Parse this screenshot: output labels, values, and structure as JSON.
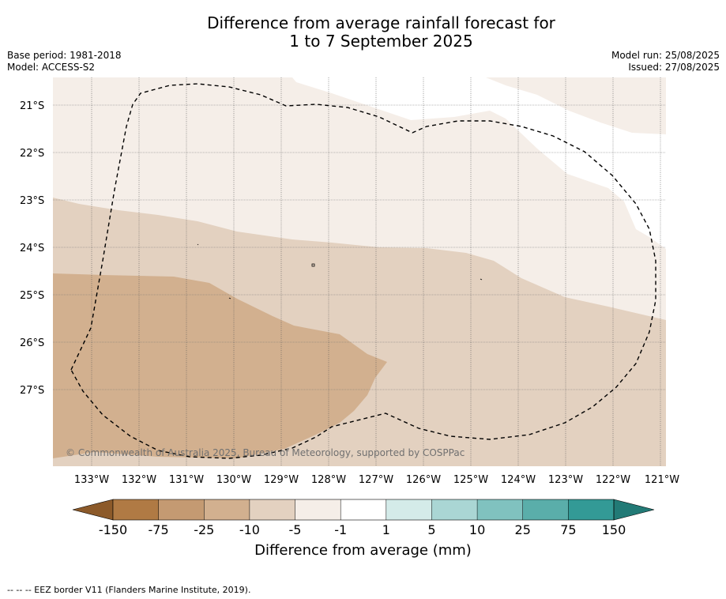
{
  "title_line1": "Difference from average rainfall forecast for",
  "title_line2": "1 to 7 September 2025",
  "base_period": "Base period: 1981-2018",
  "model": "Model: ACCESS-S2",
  "model_run": "Model run: 25/08/2025",
  "issued": "Issued: 27/08/2025",
  "copyright": "© Commonwealth of Australia 2025, Bureau of Meteorology, supported by COSPPac",
  "lat_labels": [
    "21°S",
    "22°S",
    "23°S",
    "24°S",
    "25°S",
    "26°S",
    "27°S"
  ],
  "lon_labels": [
    "133°W",
    "132°W",
    "131°W",
    "130°W",
    "129°W",
    "128°W",
    "127°W",
    "126°W",
    "125°W",
    "124°W",
    "123°W",
    "122°W",
    "121°W"
  ],
  "colorbar": {
    "title": "Difference from average (mm)",
    "tick_labels": [
      "-150",
      "-75",
      "-25",
      "-10",
      "-5",
      "-1",
      "1",
      "5",
      "10",
      "25",
      "75",
      "150"
    ],
    "colors": [
      "#8c5a2a",
      "#b07a44",
      "#c49a72",
      "#d2b08f",
      "#e3d1c0",
      "#f5eee8",
      "#ffffff",
      "#d4ebe9",
      "#aad6d4",
      "#80c2bf",
      "#5aaeaa",
      "#339a96",
      "#227a76"
    ]
  },
  "footer_note": "-- -- -- EEZ border V11 (Flanders Marine Institute, 2019)."
}
